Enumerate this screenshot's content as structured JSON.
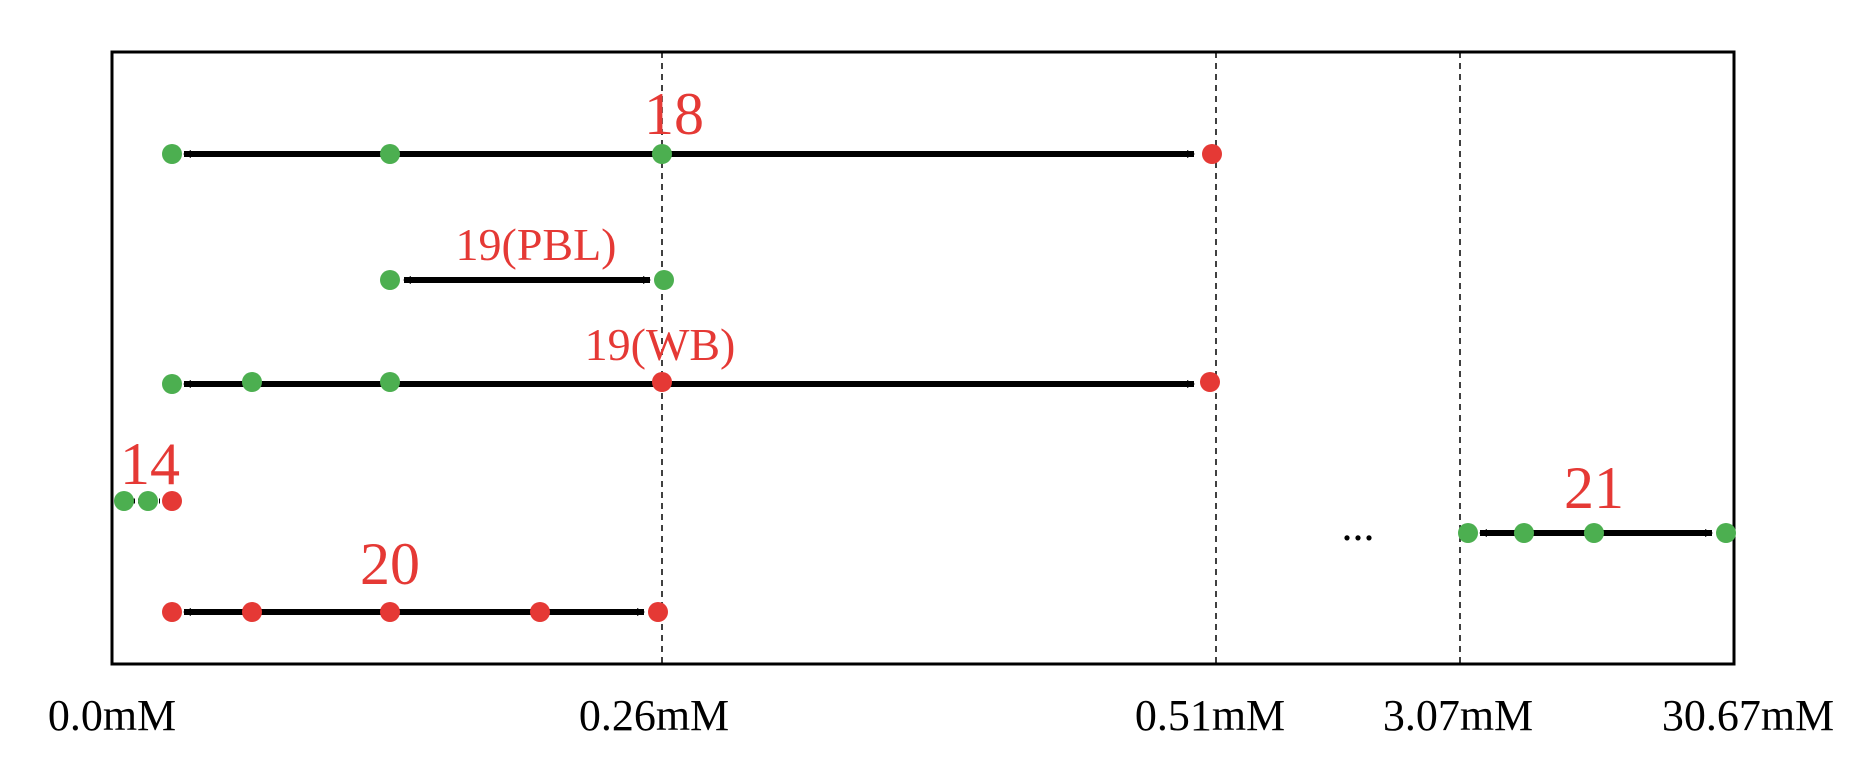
{
  "chart_data": {
    "type": "range-diagram",
    "axis_labels": [
      "0.0mM",
      "0.26mM",
      "0.51mM",
      "3.07mM",
      "30.67mM"
    ],
    "ellipsis": "...",
    "colors": {
      "green": "#4caf50",
      "red": "#e53935",
      "label_red": "#e53935",
      "arrow": "#000000"
    },
    "rows": [
      {
        "label": "18",
        "points": [
          {
            "at": "0.0mM",
            "color": "green"
          },
          {
            "at": "mid",
            "color": "green"
          },
          {
            "at": "0.26mM",
            "color": "green"
          },
          {
            "at": "0.51mM",
            "color": "red"
          }
        ]
      },
      {
        "label": "19(PBL)",
        "points": [
          {
            "at": "mid",
            "color": "green"
          },
          {
            "at": "0.26mM",
            "color": "green"
          }
        ]
      },
      {
        "label": "19(WB)",
        "points": [
          {
            "at": "0.0mM",
            "color": "green"
          },
          {
            "at": "low",
            "color": "green"
          },
          {
            "at": "mid",
            "color": "green"
          },
          {
            "at": "0.26mM",
            "color": "red"
          },
          {
            "at": "0.51mM",
            "color": "red"
          }
        ]
      },
      {
        "label": "14",
        "points": [
          {
            "at": "near-zero",
            "color": "green"
          },
          {
            "at": "near-zero",
            "color": "green"
          },
          {
            "at": "0.0mM",
            "color": "red"
          }
        ]
      },
      {
        "label": "20",
        "points": [
          {
            "at": "0.0mM",
            "color": "red"
          },
          {
            "at": "low",
            "color": "red"
          },
          {
            "at": "mid",
            "color": "red"
          },
          {
            "at": "high",
            "color": "red"
          },
          {
            "at": "0.26mM",
            "color": "red"
          }
        ]
      },
      {
        "label": "21",
        "points": [
          {
            "at": "3.07mM",
            "color": "green"
          },
          {
            "at": "between",
            "color": "green"
          },
          {
            "at": "between",
            "color": "green"
          },
          {
            "at": "30.67mM",
            "color": "green"
          }
        ]
      }
    ]
  }
}
